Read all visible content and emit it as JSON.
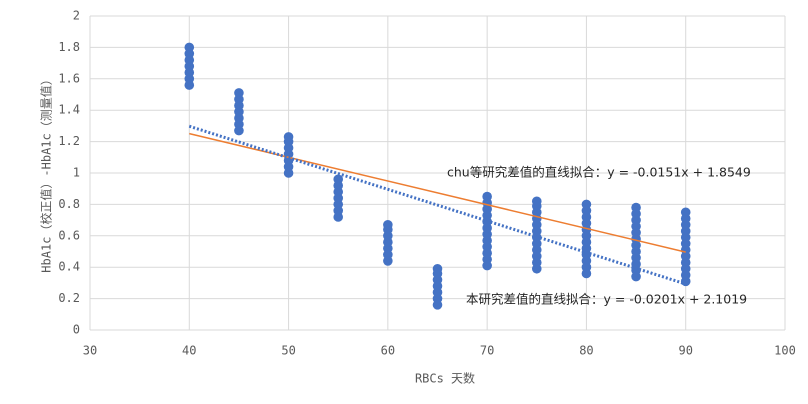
{
  "chart_data": {
    "type": "scatter",
    "x_label": "RBCs 天数",
    "y_label": "HbA1c（校正值）-HbA1c（测量值）",
    "x": [
      40,
      40,
      40,
      40,
      40,
      40,
      40,
      45,
      45,
      45,
      45,
      45,
      45,
      45,
      50,
      50,
      50,
      50,
      50,
      50,
      50,
      55,
      55,
      55,
      55,
      55,
      55,
      55,
      60,
      60,
      60,
      60,
      60,
      60,
      60,
      65,
      65,
      65,
      65,
      65,
      65,
      65,
      70,
      70,
      70,
      70,
      70,
      70,
      70,
      70,
      70,
      70,
      70,
      70,
      75,
      75,
      75,
      75,
      75,
      75,
      75,
      75,
      75,
      75,
      75,
      75,
      80,
      80,
      80,
      80,
      80,
      80,
      80,
      80,
      80,
      80,
      80,
      80,
      85,
      85,
      85,
      85,
      85,
      85,
      85,
      85,
      85,
      85,
      85,
      85,
      90,
      90,
      90,
      90,
      90,
      90,
      90,
      90,
      90,
      90,
      90,
      90
    ],
    "values": [
      1.56,
      1.6,
      1.64,
      1.68,
      1.72,
      1.76,
      1.8,
      1.27,
      1.31,
      1.35,
      1.39,
      1.43,
      1.47,
      1.51,
      1,
      1.04,
      1.08,
      1.12,
      1.16,
      1.2,
      1.23,
      0.72,
      0.76,
      0.8,
      0.84,
      0.88,
      0.92,
      0.96,
      0.44,
      0.48,
      0.52,
      0.56,
      0.6,
      0.64,
      0.67,
      0.16,
      0.2,
      0.24,
      0.28,
      0.32,
      0.36,
      0.39,
      0.41,
      0.45,
      0.49,
      0.53,
      0.57,
      0.61,
      0.65,
      0.69,
      0.73,
      0.77,
      0.81,
      0.85,
      0.39,
      0.43,
      0.47,
      0.51,
      0.55,
      0.59,
      0.63,
      0.67,
      0.71,
      0.75,
      0.79,
      0.82,
      0.36,
      0.4,
      0.44,
      0.48,
      0.52,
      0.56,
      0.6,
      0.64,
      0.68,
      0.72,
      0.76,
      0.8,
      0.34,
      0.38,
      0.42,
      0.46,
      0.5,
      0.54,
      0.58,
      0.62,
      0.66,
      0.7,
      0.74,
      0.78,
      0.31,
      0.35,
      0.39,
      0.43,
      0.47,
      0.51,
      0.55,
      0.59,
      0.63,
      0.67,
      0.71,
      0.75
    ],
    "color": "#4472c4",
    "trendlines": [
      {
        "label": "chu等研究差值的直线拟合：y = -0.0151x + 1.8549",
        "slope": -0.0151,
        "intercept": 1.8549,
        "color": "#ed7d31",
        "dashed": false
      },
      {
        "label": "本研究差值的直线拟合：y = -0.0201x + 2.1019",
        "slope": -0.0201,
        "intercept": 2.1019,
        "color": "#4472c4",
        "dashed": true
      }
    ],
    "xlim": [
      30,
      100
    ],
    "xticks": [
      30,
      40,
      50,
      60,
      70,
      80,
      90,
      100
    ],
    "ylim": [
      0,
      2
    ],
    "yticks": [
      0,
      0.2,
      0.4,
      0.6,
      0.8,
      1,
      1.2,
      1.4,
      1.6,
      1.8,
      2
    ],
    "grid": true
  }
}
